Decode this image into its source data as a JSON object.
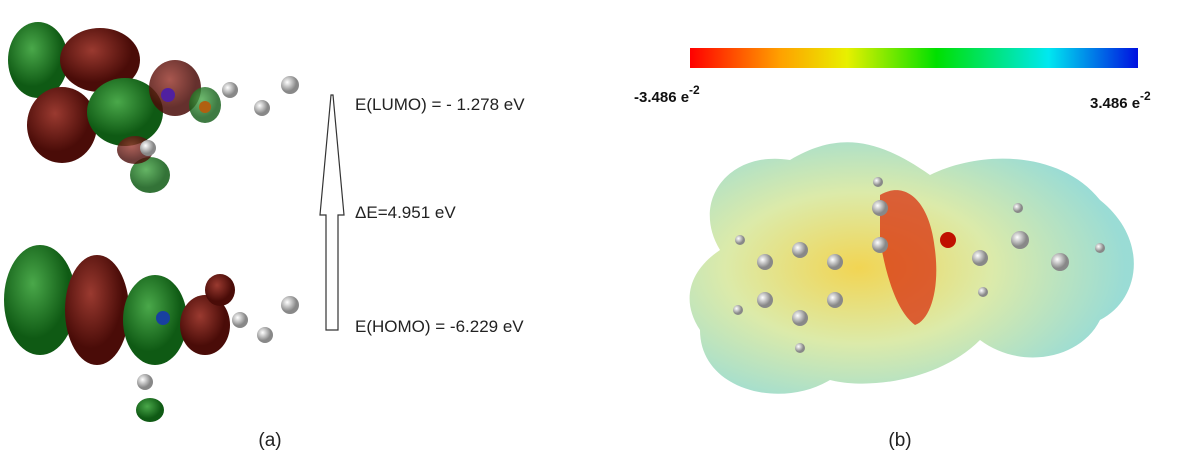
{
  "panel_a": {
    "lumo_label": "E(LUMO) = - 1.278 eV",
    "gap_label": "ΔE=4.951 eV",
    "homo_label": "E(HOMO) = -6.229 eV",
    "caption": "(a)"
  },
  "panel_b": {
    "colorbar": {
      "min_label": {
        "base": "-3.486 e",
        "exponent": "-2"
      },
      "max_label": {
        "base": "3.486 e",
        "exponent": "-2"
      }
    },
    "caption": "(b)"
  }
}
